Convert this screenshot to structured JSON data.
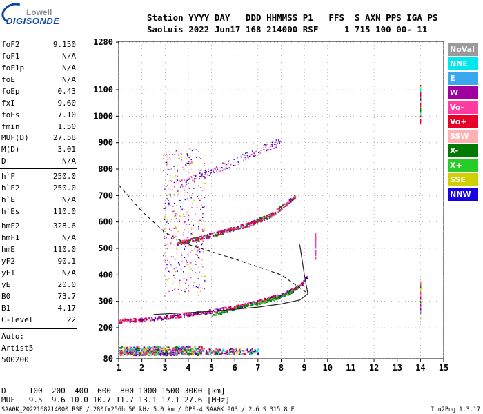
{
  "logo": {
    "line1": "Lowell",
    "line2": "DIGISONDE"
  },
  "header": {
    "row1": "Station YYYY DAY   DDD HHMMSS P1   FFS  S AXN PPS IGA PS",
    "row2": "SaoLuis 2022 Jun17 168 214000 RSF     1 715 100 00- 11"
  },
  "params_group1": [
    {
      "k": "foF2",
      "v": "9.150"
    },
    {
      "k": "foF1",
      "v": "N/A"
    },
    {
      "k": "foF1p",
      "v": "N/A"
    },
    {
      "k": "foE",
      "v": "N/A"
    },
    {
      "k": "foEp",
      "v": "0.43"
    },
    {
      "k": "fxI",
      "v": "9.60"
    },
    {
      "k": "foEs",
      "v": "7.10"
    },
    {
      "k": "fmin",
      "v": "1.50"
    }
  ],
  "params_group2": [
    {
      "k": "MUF(D)",
      "v": "27.58"
    },
    {
      "k": "M(D)",
      "v": "3.01"
    },
    {
      "k": "D",
      "v": "N/A"
    }
  ],
  "params_group3": [
    {
      "k": "h`F",
      "v": "250.0"
    },
    {
      "k": "h`F2",
      "v": "250.0"
    },
    {
      "k": "h`E",
      "v": "N/A"
    },
    {
      "k": "h`Es",
      "v": "110.0"
    }
  ],
  "params_group4": [
    {
      "k": "hmF2",
      "v": "328.6"
    },
    {
      "k": "hmF1",
      "v": "N/A"
    },
    {
      "k": "hmE",
      "v": "110.0"
    },
    {
      "k": "yF2",
      "v": "90.1"
    },
    {
      "k": "yF1",
      "v": "N/A"
    },
    {
      "k": "yE",
      "v": "20.0"
    },
    {
      "k": "B0",
      "v": "73.7"
    },
    {
      "k": "B1",
      "v": "4.17"
    }
  ],
  "clevel": {
    "k": "C-level",
    "v": "22"
  },
  "auto": {
    "line1": "Auto:",
    "line2": "Artist5",
    "line3": "500200"
  },
  "legend": [
    {
      "label": "NoVal",
      "color": "#9a9a9a"
    },
    {
      "label": "NNE",
      "color": "#00e8ee"
    },
    {
      "label": "E",
      "color": "#3aa8f0"
    },
    {
      "label": "W",
      "color": "#a000a0"
    },
    {
      "label": "Vo-",
      "color": "#ff3aa0"
    },
    {
      "label": "Vo+",
      "color": "#e8002a"
    },
    {
      "label": "SSW",
      "color": "#ffb0b0"
    },
    {
      "label": "X-",
      "color": "#007a00"
    },
    {
      "label": "X+",
      "color": "#28cc28"
    },
    {
      "label": "SSE",
      "color": "#d0d000"
    },
    {
      "label": "NNW",
      "color": "#1800e0"
    }
  ],
  "bottom": {
    "d_row": "D     100  200  400  600  800 1000 1500 3000 [km]",
    "muf_row": "MUF   9.5  9.6 10.0 10.7 11.7 13.1 17.1 27.6 [MHz]"
  },
  "footer": {
    "left": "SAA0K_2022168214000.RSF / 280fx256h 50 kHz 5.0 km / DPS-4 SAA0K 903 / 2.6 S 315.8 E",
    "right": "Ion2Png 1.3.17"
  },
  "chart_data": {
    "type": "scatter",
    "title": "",
    "xlabel": "",
    "ylabel": "",
    "xlim": [
      1,
      15
    ],
    "ylim": [
      80,
      1300
    ],
    "x_ticks": [
      1,
      2,
      3,
      4,
      5,
      6,
      7,
      8,
      9,
      10,
      11,
      12,
      13,
      14,
      15
    ],
    "y_ticks": [
      80,
      200,
      300,
      400,
      500,
      600,
      700,
      800,
      900,
      1000,
      1100,
      1280
    ],
    "series": [
      {
        "name": "O-trace F2",
        "x": [
          1.0,
          2.0,
          3.0,
          4.0,
          5.0,
          6.0,
          7.0,
          8.0,
          8.5,
          8.9,
          9.1
        ],
        "y": [
          228,
          232,
          240,
          252,
          265,
          280,
          300,
          325,
          345,
          370,
          395
        ]
      },
      {
        "name": "X-trace F2",
        "x": [
          5.0,
          6.0,
          7.0,
          8.0,
          8.5,
          8.8
        ],
        "y": [
          250,
          275,
          295,
          320,
          340,
          360
        ]
      },
      {
        "name": "2F multi-hop",
        "x": [
          3.5,
          4.5,
          5.5,
          6.5,
          7.5,
          8.2,
          8.6
        ],
        "y": [
          520,
          540,
          565,
          590,
          625,
          670,
          700
        ]
      },
      {
        "name": "Es layer",
        "x": [
          1.0,
          2.0,
          3.0,
          4.0,
          5.0,
          6.0,
          7.0
        ],
        "y": [
          110,
          110,
          110,
          110,
          110,
          110,
          110
        ]
      },
      {
        "name": "Profile solid",
        "x": [
          2.5,
          5.0,
          7.0,
          8.0,
          8.8,
          9.15,
          9.0,
          8.8
        ],
        "y": [
          250,
          262,
          278,
          290,
          305,
          328,
          400,
          515
        ]
      },
      {
        "name": "Profile dashed",
        "x": [
          1.0,
          2.0,
          3.0,
          4.0,
          6.0,
          8.0,
          9.15
        ],
        "y": [
          740,
          640,
          560,
          515,
          460,
          400,
          330
        ]
      }
    ]
  }
}
